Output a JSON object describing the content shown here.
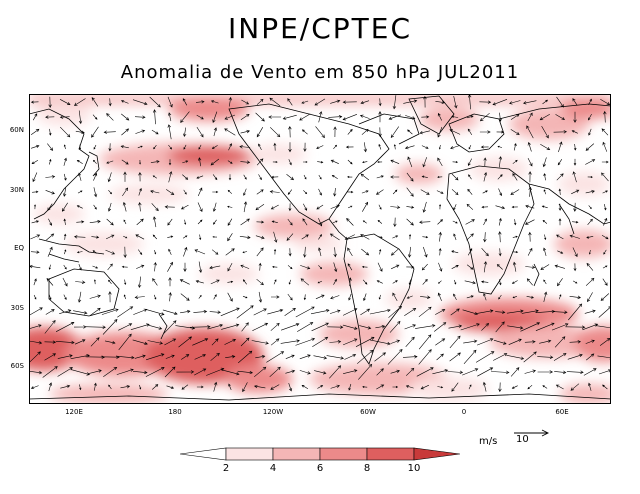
{
  "header": {
    "org": "INPE/CPTEC",
    "subtitle": "Anomalia de Vento em 850 hPa JUL2011"
  },
  "map": {
    "lat_labels": [
      "60N",
      "30N",
      "EQ",
      "30S",
      "60S"
    ],
    "lon_labels": [
      "120E",
      "180",
      "120W",
      "60W",
      "0",
      "60E"
    ]
  },
  "reference_vector": {
    "unit": "m/s",
    "magnitude": "10"
  },
  "colorbar": {
    "levels": [
      "2",
      "4",
      "6",
      "8",
      "10"
    ],
    "colors": [
      "#ffffff",
      "#fbe3e3",
      "#f4b6b6",
      "#ec8a8a",
      "#de5f5f",
      "#c83a3a"
    ]
  },
  "colors": {
    "land": "#000000",
    "anomaly_low": "#fbe3e3",
    "anomaly_mid": "#f4b6b6",
    "anomaly_high": "#de5f5f"
  }
}
